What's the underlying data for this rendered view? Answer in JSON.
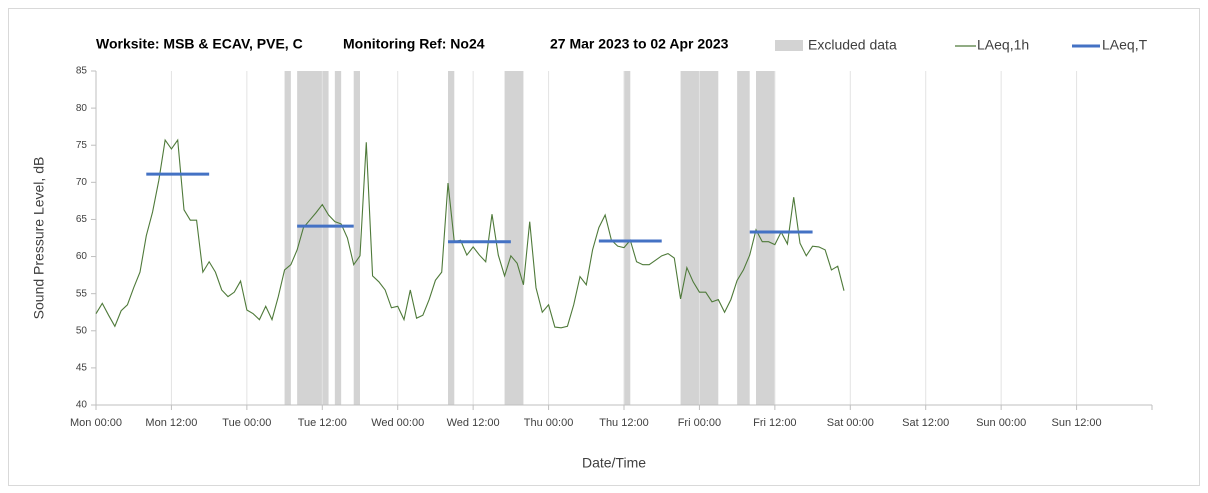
{
  "chart_data": {
    "type": "line",
    "title": "Worksite: MSB & ECAV, PVE, C",
    "reference": "Monitoring Ref: No24",
    "period": "27 Mar 2023 to 02 Apr 2023",
    "x_label": "Date/Time",
    "y_label": "Sound Pressure Level, dB",
    "xlim": [
      0,
      168
    ],
    "xticks": [
      {
        "value": 0,
        "label": "Mon 00:00"
      },
      {
        "value": 12,
        "label": "Mon 12:00"
      },
      {
        "value": 24,
        "label": "Tue 00:00"
      },
      {
        "value": 36,
        "label": "Tue 12:00"
      },
      {
        "value": 48,
        "label": "Wed 00:00"
      },
      {
        "value": 60,
        "label": "Wed 12:00"
      },
      {
        "value": 72,
        "label": "Thu 00:00"
      },
      {
        "value": 84,
        "label": "Thu 12:00"
      },
      {
        "value": 96,
        "label": "Fri 00:00"
      },
      {
        "value": 108,
        "label": "Fri 12:00"
      },
      {
        "value": 120,
        "label": "Sat 00:00"
      },
      {
        "value": 132,
        "label": "Sat 12:00"
      },
      {
        "value": 144,
        "label": "Sun 00:00"
      },
      {
        "value": 156,
        "label": "Sun 12:00"
      }
    ],
    "ylim": [
      40,
      85
    ],
    "yticks": [
      40,
      45,
      50,
      55,
      60,
      65,
      70,
      75,
      80,
      85
    ],
    "grid": "x",
    "excluded": {
      "name": "Excluded data",
      "color": "#d3d3d3",
      "ranges": [
        [
          30,
          31
        ],
        [
          32,
          37
        ],
        [
          38,
          39
        ],
        [
          41,
          42
        ],
        [
          56,
          57
        ],
        [
          65,
          68
        ],
        [
          84,
          85
        ],
        [
          93,
          99
        ],
        [
          102,
          104
        ],
        [
          105,
          108
        ]
      ]
    },
    "series": [
      {
        "name": "LAeq,1h",
        "color": "#4f7a3a",
        "x": [
          0,
          1,
          2,
          3,
          4,
          5,
          6,
          7,
          8,
          9,
          10,
          11,
          12,
          13,
          14,
          15,
          16,
          17,
          18,
          19,
          20,
          21,
          22,
          23,
          24,
          25,
          26,
          27,
          28,
          29,
          30,
          31,
          32,
          33,
          34,
          35,
          36,
          37,
          38,
          39,
          40,
          41,
          42,
          43,
          44,
          45,
          46,
          47,
          48,
          49,
          50,
          51,
          52,
          53,
          54,
          55,
          56,
          57,
          58,
          59,
          60,
          61,
          62,
          63,
          64,
          65,
          66,
          67,
          68,
          69,
          70,
          71,
          72,
          73,
          74,
          75,
          76,
          77,
          78,
          79,
          80,
          81,
          82,
          83,
          84,
          85,
          86,
          87,
          88,
          89,
          90,
          91,
          92,
          93,
          94,
          95,
          96,
          97,
          98,
          99,
          100,
          101,
          102,
          103,
          104,
          105,
          106,
          107,
          108,
          109,
          110,
          111,
          112,
          113,
          114,
          115,
          116,
          117,
          118,
          119
        ],
        "values": [
          52.3,
          53.7,
          52.1,
          50.6,
          52.7,
          53.5,
          55.8,
          57.9,
          62.8,
          66,
          70.3,
          75.7,
          74.5,
          75.7,
          66.3,
          64.9,
          64.9,
          57.9,
          59.3,
          57.9,
          55.5,
          54.6,
          55.2,
          56.7,
          52.8,
          52.3,
          51.5,
          53.3,
          51.5,
          54.6,
          58.2,
          58.9,
          60.9,
          63.9,
          64.9,
          65.9,
          67,
          65.6,
          64.7,
          64.4,
          62.5,
          58.9,
          60.1,
          75.4,
          57.4,
          56.6,
          55.5,
          53.1,
          53.3,
          51.5,
          55.5,
          51.7,
          52.1,
          54.2,
          56.8,
          57.9,
          69.9,
          62,
          62.2,
          60.2,
          61.3,
          60.2,
          59.3,
          65.7,
          60.2,
          57.4,
          60.1,
          59.1,
          56.2,
          64.7,
          55.8,
          52.5,
          53.5,
          50.5,
          50.4,
          50.6,
          53.5,
          57.3,
          56.2,
          60.9,
          63.9,
          65.6,
          62.2,
          61.4,
          61.2,
          62.2,
          59.3,
          58.9,
          58.9,
          59.5,
          60.1,
          60.4,
          59.8,
          54.3,
          58.5,
          56.6,
          55.2,
          55.2,
          53.9,
          54.2,
          52.5,
          54.2,
          56.8,
          58.2,
          60.2,
          63.6,
          62,
          62,
          61.6,
          63.3,
          61.7,
          68,
          61.8,
          60.1,
          61.4,
          61.3,
          60.9,
          58.2,
          58.7,
          55.4
        ]
      },
      {
        "name": "LAeq,T",
        "color": "#4472c4",
        "x": [
          [
            8,
            18
          ],
          [
            32,
            41
          ],
          [
            56,
            66
          ],
          [
            80,
            90
          ],
          [
            104,
            114
          ]
        ],
        "values": [
          71.1,
          64.1,
          62.0,
          62.1,
          63.3
        ]
      }
    ]
  }
}
